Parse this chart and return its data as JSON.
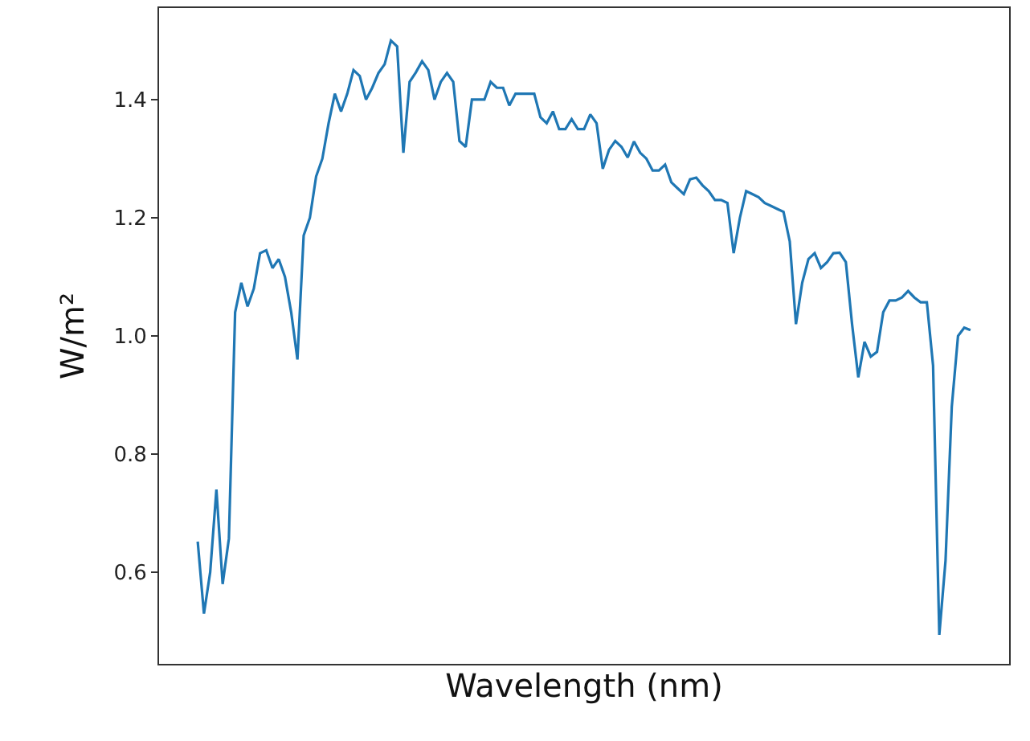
{
  "chart_data": {
    "type": "line",
    "xlabel": "Wavelength (nm)",
    "ylabel": "W/m²",
    "ylim": [
      0.445,
      1.555
    ],
    "yticks": [
      0.6,
      0.8,
      {
        "value": 1,
        "label": "1.0"
      },
      1.2,
      1.4
    ],
    "grid": false,
    "tick_labels": "y",
    "categories": [
      null,
      null,
      null,
      null,
      null,
      null,
      null,
      null,
      null,
      null,
      null,
      null,
      null,
      null,
      null,
      null,
      null,
      null,
      null,
      null,
      null,
      null,
      null,
      null,
      null,
      null,
      null,
      null,
      null,
      null,
      null,
      null,
      null,
      null,
      null,
      null,
      null,
      null,
      null,
      null,
      null,
      null,
      null,
      null,
      null,
      null,
      null,
      null,
      null,
      null,
      null,
      null,
      null,
      null,
      null,
      null,
      null,
      null,
      null,
      null,
      null,
      null,
      null,
      null,
      null,
      null,
      null,
      null,
      null,
      null,
      null,
      null,
      null,
      null,
      null,
      null,
      null,
      null,
      null,
      null,
      null,
      null,
      null,
      null,
      null,
      null,
      null,
      null,
      null,
      null,
      null,
      null,
      null,
      null,
      null,
      null,
      null,
      null,
      null,
      null,
      null,
      null,
      null,
      null,
      null,
      null,
      null,
      null,
      null,
      null,
      null,
      null,
      null,
      null,
      null,
      null,
      null,
      null,
      null,
      null,
      null,
      null,
      null,
      null,
      null
    ],
    "series": [
      {
        "color": "#1f77b4",
        "values": [
          0.652,
          0.53,
          0.6,
          0.74,
          0.58,
          0.657,
          1.04,
          1.09,
          1.05,
          1.08,
          1.14,
          1.145,
          1.115,
          1.13,
          1.1,
          1.04,
          0.96,
          1.17,
          1.2,
          1.27,
          1.3,
          1.36,
          1.41,
          1.38,
          1.41,
          1.45,
          1.44,
          1.4,
          1.42,
          1.445,
          1.46,
          1.5,
          1.49,
          1.31,
          1.43,
          1.446,
          1.465,
          1.45,
          1.4,
          1.43,
          1.445,
          1.43,
          1.33,
          1.32,
          1.4,
          1.4,
          1.4,
          1.43,
          1.42,
          1.42,
          1.39,
          1.41,
          1.41,
          1.41,
          1.41,
          1.37,
          1.36,
          1.38,
          1.35,
          1.35,
          1.367,
          1.35,
          1.35,
          1.375,
          1.36,
          1.283,
          1.315,
          1.33,
          1.32,
          1.302,
          1.329,
          1.31,
          1.3,
          1.28,
          1.28,
          1.29,
          1.26,
          1.25,
          1.24,
          1.265,
          1.268,
          1.255,
          1.245,
          1.23,
          1.23,
          1.225,
          1.14,
          1.2,
          1.245,
          1.24,
          1.235,
          1.225,
          1.22,
          1.215,
          1.21,
          1.16,
          1.02,
          1.09,
          1.13,
          1.14,
          1.115,
          1.125,
          1.14,
          1.141,
          1.125,
          1.02,
          0.93,
          0.99,
          0.965,
          0.973,
          1.04,
          1.06,
          1.06,
          1.065,
          1.076,
          1.065,
          1.057,
          1.057,
          0.95,
          0.494,
          0.62,
          0.88,
          1.0,
          1.014,
          1.01
        ]
      }
    ]
  }
}
